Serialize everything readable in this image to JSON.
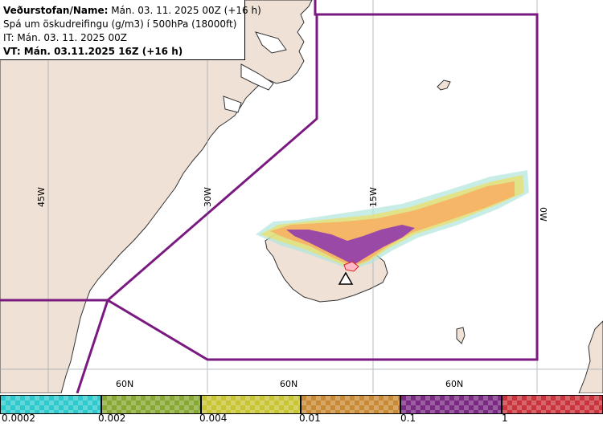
{
  "info": {
    "line1_bold": "Veðurstofan/Name:",
    "line1_rest": " Mán. 03. 11. 2025 00Z (+16 h)",
    "line2": "Spá um öskudreifingu (g/m3) í 500hPa (18000ft)",
    "line3": "IT: Mán. 03. 11. 2025 00Z",
    "line4": "VT: Mán. 03.11.2025 16Z (+16 h)"
  },
  "map": {
    "lon_labels": [
      "45W",
      "30W",
      "15W",
      "0W"
    ],
    "lat_labels": [
      "60N",
      "60N",
      "60N"
    ],
    "colors": {
      "land": "#efe1d5",
      "sea": "#ffffff",
      "boundary": "#7a1a80",
      "grid": "#9aa4ad"
    }
  },
  "legend": {
    "ticks": [
      "0.0002",
      "0.002",
      "0.004",
      "0.01",
      "0.1",
      "1"
    ],
    "colors": [
      "#2ec9cc",
      "#87a832",
      "#c8c433",
      "#c98a36",
      "#7a2a82",
      "#c9333b"
    ]
  }
}
